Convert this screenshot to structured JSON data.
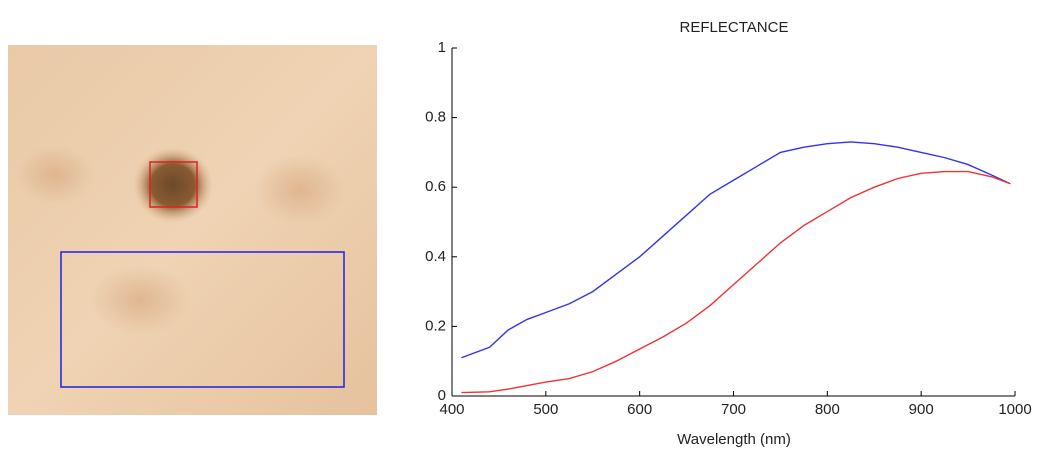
{
  "chart_data": {
    "type": "line",
    "title": "REFLECTANCE",
    "x_label": "Wavelength (nm)",
    "x": [
      410,
      440,
      460,
      480,
      500,
      525,
      550,
      575,
      600,
      625,
      650,
      675,
      700,
      725,
      750,
      775,
      800,
      825,
      850,
      875,
      900,
      925,
      950,
      975,
      995
    ],
    "series": [
      {
        "color": "#3333ee",
        "values": [
          0.11,
          0.14,
          0.19,
          0.22,
          0.24,
          0.265,
          0.3,
          0.35,
          0.4,
          0.46,
          0.52,
          0.58,
          0.62,
          0.66,
          0.7,
          0.715,
          0.725,
          0.73,
          0.725,
          0.715,
          0.7,
          0.685,
          0.665,
          0.635,
          0.61
        ]
      },
      {
        "color": "#ee3333",
        "values": [
          0.01,
          0.012,
          0.02,
          0.03,
          0.04,
          0.05,
          0.07,
          0.1,
          0.135,
          0.17,
          0.21,
          0.26,
          0.32,
          0.38,
          0.44,
          0.49,
          0.53,
          0.57,
          0.6,
          0.625,
          0.64,
          0.645,
          0.645,
          0.63,
          0.61
        ]
      }
    ],
    "xlim": [
      400,
      1000
    ],
    "xticks": [
      400,
      500,
      600,
      700,
      800,
      900,
      1000
    ],
    "ylim": [
      0,
      1
    ],
    "yticks": [
      0,
      0.2,
      0.4,
      0.6,
      0.8,
      1
    ]
  }
}
